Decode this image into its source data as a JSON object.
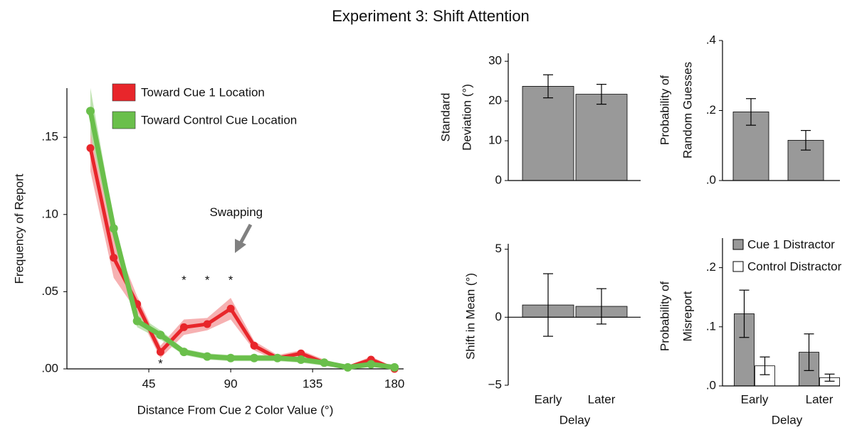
{
  "title": "Experiment 3: Shift Attention",
  "chart_data": [
    {
      "type": "line",
      "xlabel": "Distance From Cue 2 Color Value (°)",
      "ylabel": "Frequency of Report",
      "x": [
        12.9,
        25.7,
        38.6,
        51.4,
        64.3,
        77.1,
        90,
        102.9,
        115.7,
        128.6,
        141.4,
        154.3,
        167.1,
        180
      ],
      "series": [
        {
          "name": "Toward Cue 1 Location",
          "color": "#e8262b",
          "band_color": "#f4a3a5",
          "values": [
            0.143,
            0.072,
            0.042,
            0.011,
            0.027,
            0.029,
            0.039,
            0.015,
            0.007,
            0.01,
            0.004,
            0.001,
            0.006,
            0.0
          ],
          "errors": [
            0.015,
            0.013,
            0.005,
            0.004,
            0.005,
            0.004,
            0.007,
            0.003,
            0.002,
            0.002,
            0.002,
            0.001,
            0.002,
            0.001
          ]
        },
        {
          "name": "Toward Control Cue Location",
          "color": "#6abf4b",
          "band_color": "#b5dea4",
          "values": [
            0.167,
            0.091,
            0.031,
            0.022,
            0.011,
            0.008,
            0.007,
            0.007,
            0.007,
            0.006,
            0.004,
            0.001,
            0.003,
            0.001
          ],
          "errors": [
            0.015,
            0.006,
            0.004,
            0.003,
            0.002,
            0.002,
            0.002,
            0.002,
            0.002,
            0.002,
            0.002,
            0.001,
            0.001,
            0.001
          ]
        }
      ],
      "xlim": [
        0,
        185
      ],
      "ylim": [
        0,
        0.18
      ],
      "xticks": [
        45,
        90,
        135,
        180
      ],
      "yticks": [
        {
          "value": 0,
          "label": ".00"
        },
        {
          "value": 0.05,
          "label": ".05"
        },
        {
          "value": 0.1,
          "label": ".10"
        },
        {
          "value": 0.15,
          "label": ".15"
        }
      ],
      "annotations": [
        {
          "text": "Swapping",
          "x": 93,
          "y": 0.101
        },
        {
          "text": "*",
          "x": 51.4,
          "y": 0.003
        },
        {
          "text": "*",
          "x": 64.3,
          "y": 0.057
        },
        {
          "text": "*",
          "x": 77.1,
          "y": 0.057
        },
        {
          "text": "*",
          "x": 90,
          "y": 0.057
        }
      ]
    },
    {
      "type": "bar",
      "ylabel": [
        "Standard",
        "Deviation (°)"
      ],
      "categories": [
        null,
        null
      ],
      "series": [
        {
          "color": "#999999",
          "values": [
            23.7,
            21.7
          ],
          "errors": [
            2.9,
            2.5
          ]
        }
      ],
      "ylim": [
        0,
        32
      ],
      "yticks": [
        0,
        10,
        20,
        30
      ]
    },
    {
      "type": "bar",
      "ylabel": [
        "Probability of",
        "Random Guesses"
      ],
      "categories": [
        null,
        null
      ],
      "series": [
        {
          "color": "#999999",
          "values": [
            0.196,
            0.115
          ],
          "errors": [
            0.038,
            0.028
          ]
        }
      ],
      "ylim": [
        0,
        0.4
      ],
      "yticks": [
        {
          "value": 0,
          "label": ".0"
        },
        {
          "value": 0.2,
          "label": ".2"
        },
        {
          "value": 0.4,
          "label": ".4"
        }
      ]
    },
    {
      "type": "bar",
      "ylabel": [
        "Shift in Mean (°)"
      ],
      "xlabel": "Delay",
      "categories": [
        "Early",
        "Later"
      ],
      "series": [
        {
          "color": "#999999",
          "values": [
            0.9,
            0.8
          ],
          "errors": [
            2.3,
            1.3
          ]
        }
      ],
      "ylim": [
        -5,
        5.4
      ],
      "yticks": [
        {
          "value": -5,
          "label": "−5"
        },
        0,
        5
      ]
    },
    {
      "type": "bar",
      "ylabel": [
        "Probability of",
        "Misreport"
      ],
      "xlabel": "Delay",
      "categories": [
        "Early",
        "Later"
      ],
      "series": [
        {
          "name": "Cue 1 Distractor",
          "color": "#999999",
          "values": [
            0.122,
            0.057
          ],
          "errors": [
            0.04,
            0.031
          ]
        },
        {
          "name": "Control Distractor",
          "color": "#ffffff",
          "values": [
            0.034,
            0.014
          ],
          "errors": [
            0.015,
            0.006
          ]
        }
      ],
      "ylim": [
        0,
        0.25
      ],
      "yticks": [
        {
          "value": 0,
          "label": ".0"
        },
        {
          "value": 0.1,
          "label": ".1"
        },
        {
          "value": 0.2,
          "label": ".2"
        }
      ]
    }
  ]
}
